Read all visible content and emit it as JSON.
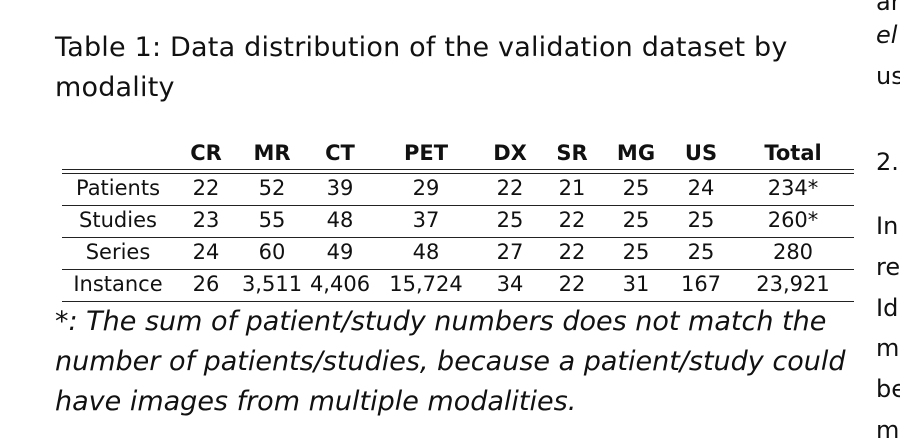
{
  "caption": {
    "line1": "Table 1:  Data distribution of the validation dataset by",
    "line2": "modality"
  },
  "table": {
    "columns": [
      "",
      "CR",
      "MR",
      "CT",
      "PET",
      "DX",
      "SR",
      "MG",
      "US",
      "Total"
    ],
    "rows": [
      [
        "Patients",
        "22",
        "52",
        "39",
        "29",
        "22",
        "21",
        "25",
        "24",
        "234*"
      ],
      [
        "Studies",
        "23",
        "55",
        "48",
        "37",
        "25",
        "22",
        "25",
        "25",
        "260*"
      ],
      [
        "Series",
        "24",
        "60",
        "49",
        "48",
        "27",
        "22",
        "25",
        "25",
        "280"
      ],
      [
        "Instance",
        "26",
        "3,511",
        "4,406",
        "15,724",
        "34",
        "22",
        "31",
        "167",
        "23,921"
      ]
    ]
  },
  "footnote": {
    "line1": "*: The sum of patient/study numbers does not match the",
    "line2": "number of patients/studies, because a patient/study could",
    "line3": "have images from multiple modalities."
  },
  "right_column_fragments": {
    "f1": "ar",
    "f2": "el",
    "f3": "us",
    "f4": "2.",
    "f5": "In",
    "f6": "re",
    "f7": "Id",
    "f8": "m",
    "f9": "be",
    "f10": "m"
  }
}
